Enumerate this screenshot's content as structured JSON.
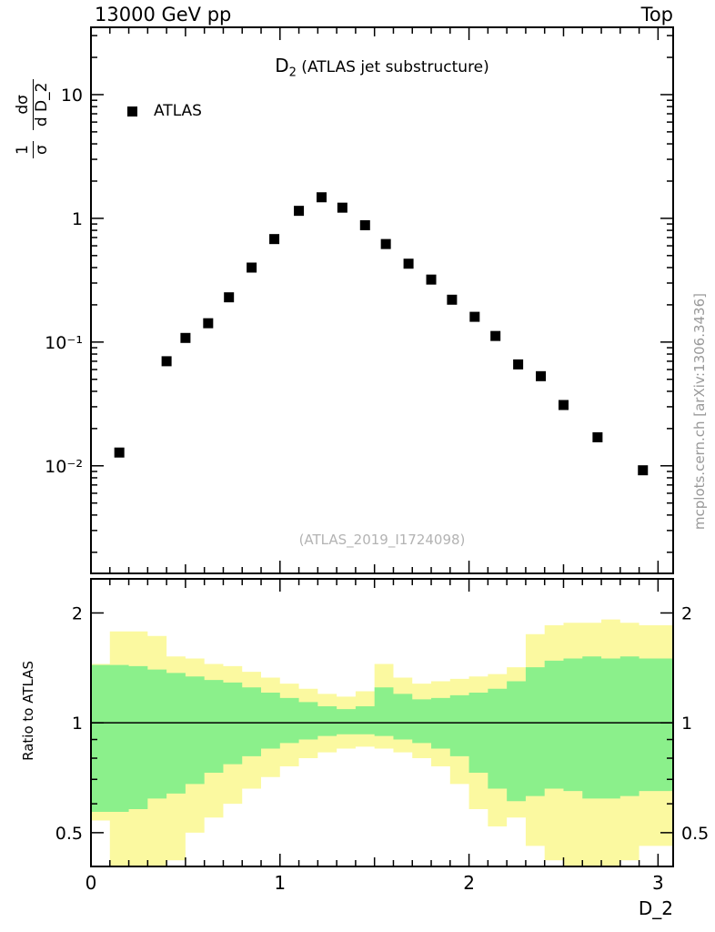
{
  "header": {
    "left": "13000 GeV pp",
    "right": "Top"
  },
  "main": {
    "title": {
      "base": "D",
      "sub": "2",
      "rest": " (ATLAS jet substructure)"
    },
    "legend": {
      "label": "ATLAS"
    },
    "watermark": "(ATLAS_2019_I1724098)",
    "ylabel": {
      "f1num": "1",
      "f1den": "σ",
      "f2num": "dσ",
      "f2den": "d D_2"
    }
  },
  "ratio_panel": {
    "ylabel": "Ratio to ATLAS"
  },
  "xlabel": "D_2",
  "side_note": "mcplots.cern.ch [arXiv:1306.3436]",
  "colors": {
    "yellow": "#fbf9a0",
    "green": "#8bf08b",
    "marker": "#000000"
  },
  "chart_data": [
    {
      "type": "scatter",
      "panel": "main",
      "title": "D_2 (ATLAS jet substructure)",
      "x_range": [
        0,
        3.08
      ],
      "y_scale": "log",
      "y_range": [
        0.00135,
        35
      ],
      "y_ticks": [
        {
          "v": 10,
          "label": "10"
        },
        {
          "v": 1,
          "label": "1"
        },
        {
          "v": 0.1,
          "label": "10⁻¹"
        },
        {
          "v": 0.01,
          "label": "10⁻²"
        }
      ],
      "x_ticks": [
        0,
        1,
        2,
        3
      ],
      "series": [
        {
          "name": "ATLAS",
          "marker": "filled-square",
          "color": "#000000",
          "x": [
            0.15,
            0.4,
            0.5,
            0.62,
            0.73,
            0.85,
            0.97,
            1.1,
            1.22,
            1.33,
            1.45,
            1.56,
            1.68,
            1.8,
            1.91,
            2.03,
            2.14,
            2.26,
            2.38,
            2.5,
            2.68,
            2.92
          ],
          "y": [
            0.0128,
            0.07,
            0.108,
            0.142,
            0.23,
            0.4,
            0.68,
            1.15,
            1.48,
            1.22,
            0.88,
            0.62,
            0.43,
            0.32,
            0.22,
            0.16,
            0.112,
            0.066,
            0.053,
            0.031,
            0.017,
            0.0092
          ]
        }
      ]
    },
    {
      "type": "band-steps",
      "panel": "ratio",
      "x_range": [
        0,
        3.08
      ],
      "y_scale": "log",
      "y_range": [
        0.404,
        2.48
      ],
      "y_ticks": [
        {
          "v": 2,
          "label": "2"
        },
        {
          "v": 1,
          "label": "1"
        },
        {
          "v": 0.5,
          "label": "0.5"
        }
      ],
      "x_ticks": [
        0,
        1,
        2,
        3
      ],
      "reference_line": 1,
      "bin_edges": [
        0,
        0.1,
        0.2,
        0.3,
        0.4,
        0.5,
        0.6,
        0.7,
        0.8,
        0.9,
        1.0,
        1.1,
        1.2,
        1.3,
        1.4,
        1.5,
        1.6,
        1.7,
        1.8,
        1.9,
        2.0,
        2.1,
        2.2,
        2.3,
        2.4,
        2.5,
        2.6,
        2.7,
        2.8,
        2.9,
        3.0,
        3.1
      ],
      "bands": [
        {
          "name": "total-uncertainty",
          "color": "yellow",
          "hi": [
            1.45,
            1.78,
            1.78,
            1.73,
            1.52,
            1.5,
            1.45,
            1.43,
            1.38,
            1.33,
            1.28,
            1.24,
            1.2,
            1.18,
            1.22,
            1.45,
            1.33,
            1.28,
            1.3,
            1.32,
            1.34,
            1.36,
            1.42,
            1.75,
            1.85,
            1.88,
            1.88,
            1.92,
            1.88,
            1.85,
            1.85
          ],
          "lo": [
            0.54,
            0.38,
            0.35,
            0.35,
            0.42,
            0.5,
            0.55,
            0.6,
            0.66,
            0.71,
            0.76,
            0.8,
            0.83,
            0.85,
            0.86,
            0.85,
            0.83,
            0.8,
            0.76,
            0.68,
            0.58,
            0.52,
            0.55,
            0.46,
            0.42,
            0.38,
            0.38,
            0.4,
            0.42,
            0.46,
            0.46
          ]
        },
        {
          "name": "stat-uncertainty",
          "color": "green",
          "hi": [
            1.44,
            1.44,
            1.43,
            1.4,
            1.37,
            1.34,
            1.31,
            1.29,
            1.25,
            1.21,
            1.17,
            1.14,
            1.11,
            1.09,
            1.11,
            1.25,
            1.2,
            1.16,
            1.17,
            1.19,
            1.21,
            1.24,
            1.3,
            1.42,
            1.48,
            1.5,
            1.52,
            1.5,
            1.52,
            1.5,
            1.5
          ],
          "lo": [
            0.57,
            0.57,
            0.58,
            0.62,
            0.64,
            0.68,
            0.73,
            0.77,
            0.81,
            0.85,
            0.88,
            0.9,
            0.92,
            0.93,
            0.93,
            0.92,
            0.9,
            0.88,
            0.85,
            0.81,
            0.73,
            0.66,
            0.61,
            0.63,
            0.66,
            0.65,
            0.62,
            0.62,
            0.63,
            0.65,
            0.65
          ]
        }
      ]
    }
  ]
}
